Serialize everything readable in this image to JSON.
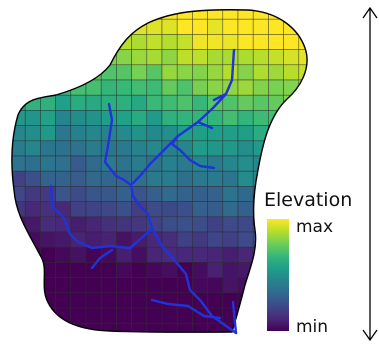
{
  "legend": {
    "title": "Elevation",
    "max_label": "max",
    "min_label": "min",
    "colorscale": [
      "#fde725",
      "#b5de2b",
      "#6ece58",
      "#35b779",
      "#1f9e89",
      "#26828e",
      "#31688e",
      "#3e4989",
      "#482878",
      "#440154"
    ]
  },
  "colors": {
    "river": "#2033d8",
    "grid_line": "#2b2b2b",
    "outline": "#000000"
  },
  "icons": {
    "height_indicator": "double-headed-vertical-arrow"
  }
}
